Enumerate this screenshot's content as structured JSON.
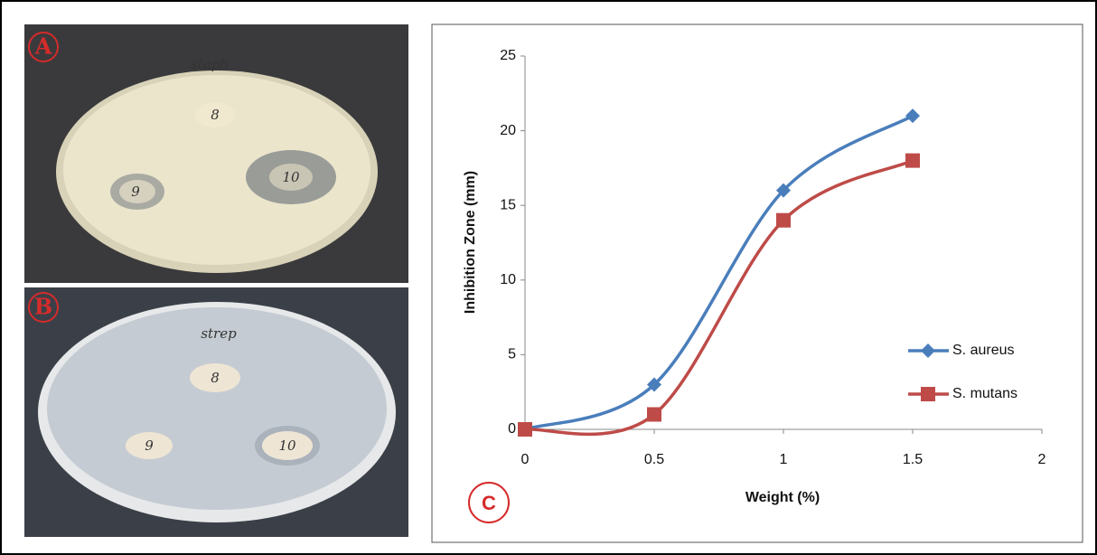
{
  "panels": {
    "a": {
      "label": "A",
      "caption": "staph",
      "discs": [
        "8",
        "9",
        "10"
      ]
    },
    "b": {
      "label": "B",
      "caption": "strep",
      "discs": [
        "8",
        "9",
        "10"
      ]
    }
  },
  "chart_data": {
    "type": "line",
    "panel_label": "C",
    "x_label": "Weight (%)",
    "y_label": "Inhibition Zone (mm)",
    "x": [
      0,
      0.5,
      1,
      1.5
    ],
    "series": [
      {
        "name": "S. aureus",
        "color": "#4a7ebb",
        "marker": "diamond",
        "values": [
          0,
          3,
          16,
          21
        ]
      },
      {
        "name": "S. mutans",
        "color": "#be4b48",
        "marker": "square",
        "values": [
          0,
          1,
          14,
          18
        ]
      }
    ],
    "xlim": [
      0,
      2
    ],
    "xticks": [
      0,
      0.5,
      1,
      1.5,
      2
    ],
    "ylim": [
      0,
      25
    ],
    "yticks": [
      0,
      5,
      10,
      15,
      20,
      25
    ],
    "smooth": true,
    "legend": "right"
  }
}
